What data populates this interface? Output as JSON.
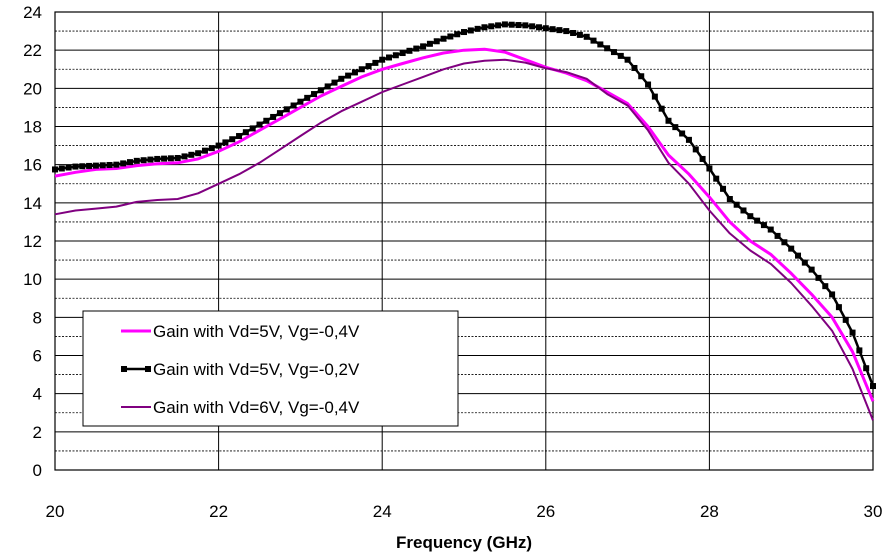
{
  "chart_data": {
    "type": "line",
    "title": "",
    "xlabel": "Frequency (GHz)",
    "ylabel": "",
    "xlim": [
      20,
      30
    ],
    "ylim": [
      0,
      24
    ],
    "x_ticks": [
      20,
      22,
      24,
      26,
      28,
      30
    ],
    "y_ticks": [
      0,
      2,
      4,
      6,
      8,
      10,
      12,
      14,
      16,
      18,
      20,
      22,
      24
    ],
    "grid": true,
    "legend_position": "lower-left",
    "series": [
      {
        "name": "Gain with Vd=5V, Vg=-0,4V",
        "color": "#ff00ff",
        "marker": "none",
        "points": [
          [
            20.0,
            15.4
          ],
          [
            20.25,
            15.6
          ],
          [
            20.5,
            15.75
          ],
          [
            20.75,
            15.8
          ],
          [
            21.0,
            15.95
          ],
          [
            21.25,
            16.05
          ],
          [
            21.5,
            16.1
          ],
          [
            21.75,
            16.3
          ],
          [
            22.0,
            16.7
          ],
          [
            22.25,
            17.2
          ],
          [
            22.5,
            17.8
          ],
          [
            22.75,
            18.4
          ],
          [
            23.0,
            19.0
          ],
          [
            23.25,
            19.6
          ],
          [
            23.5,
            20.1
          ],
          [
            23.75,
            20.6
          ],
          [
            24.0,
            21.0
          ],
          [
            24.25,
            21.3
          ],
          [
            24.5,
            21.6
          ],
          [
            24.75,
            21.85
          ],
          [
            25.0,
            22.0
          ],
          [
            25.25,
            22.05
          ],
          [
            25.5,
            21.9
          ],
          [
            25.75,
            21.5
          ],
          [
            26.0,
            21.1
          ],
          [
            26.25,
            20.8
          ],
          [
            26.5,
            20.4
          ],
          [
            26.75,
            19.8
          ],
          [
            27.0,
            19.2
          ],
          [
            27.25,
            18.0
          ],
          [
            27.5,
            16.5
          ],
          [
            27.75,
            15.5
          ],
          [
            28.0,
            14.3
          ],
          [
            28.25,
            13.0
          ],
          [
            28.5,
            12.0
          ],
          [
            28.75,
            11.3
          ],
          [
            29.0,
            10.3
          ],
          [
            29.25,
            9.2
          ],
          [
            29.5,
            8.0
          ],
          [
            29.75,
            6.2
          ],
          [
            30.0,
            3.6
          ]
        ]
      },
      {
        "name": "Gain with Vd=5V, Vg=-0,2V",
        "color": "#000000",
        "marker": "square",
        "points": [
          [
            20.0,
            15.75
          ],
          [
            20.25,
            15.9
          ],
          [
            20.5,
            15.95
          ],
          [
            20.75,
            16.0
          ],
          [
            21.0,
            16.2
          ],
          [
            21.25,
            16.3
          ],
          [
            21.5,
            16.35
          ],
          [
            21.75,
            16.6
          ],
          [
            22.0,
            17.0
          ],
          [
            22.25,
            17.5
          ],
          [
            22.5,
            18.1
          ],
          [
            22.75,
            18.7
          ],
          [
            23.0,
            19.3
          ],
          [
            23.25,
            19.9
          ],
          [
            23.5,
            20.5
          ],
          [
            23.75,
            21.0
          ],
          [
            24.0,
            21.5
          ],
          [
            24.25,
            21.85
          ],
          [
            24.5,
            22.2
          ],
          [
            24.75,
            22.6
          ],
          [
            25.0,
            22.95
          ],
          [
            25.25,
            23.2
          ],
          [
            25.5,
            23.35
          ],
          [
            25.75,
            23.3
          ],
          [
            26.0,
            23.15
          ],
          [
            26.25,
            23.0
          ],
          [
            26.5,
            22.7
          ],
          [
            26.75,
            22.1
          ],
          [
            27.0,
            21.5
          ],
          [
            27.25,
            20.2
          ],
          [
            27.5,
            18.3
          ],
          [
            27.75,
            17.3
          ],
          [
            28.0,
            15.8
          ],
          [
            28.25,
            14.2
          ],
          [
            28.5,
            13.3
          ],
          [
            28.75,
            12.6
          ],
          [
            29.0,
            11.6
          ],
          [
            29.25,
            10.5
          ],
          [
            29.5,
            9.2
          ],
          [
            29.75,
            7.2
          ],
          [
            30.0,
            4.4
          ]
        ]
      },
      {
        "name": "Gain with Vd=6V, Vg=-0,4V",
        "color": "#800080",
        "marker": "none",
        "points": [
          [
            20.0,
            13.4
          ],
          [
            20.25,
            13.6
          ],
          [
            20.5,
            13.7
          ],
          [
            20.75,
            13.8
          ],
          [
            21.0,
            14.05
          ],
          [
            21.25,
            14.15
          ],
          [
            21.5,
            14.2
          ],
          [
            21.75,
            14.5
          ],
          [
            22.0,
            15.0
          ],
          [
            22.25,
            15.5
          ],
          [
            22.5,
            16.1
          ],
          [
            22.75,
            16.8
          ],
          [
            23.0,
            17.5
          ],
          [
            23.25,
            18.2
          ],
          [
            23.5,
            18.8
          ],
          [
            23.75,
            19.3
          ],
          [
            24.0,
            19.8
          ],
          [
            24.25,
            20.2
          ],
          [
            24.5,
            20.6
          ],
          [
            24.75,
            21.0
          ],
          [
            25.0,
            21.3
          ],
          [
            25.25,
            21.45
          ],
          [
            25.5,
            21.5
          ],
          [
            25.75,
            21.35
          ],
          [
            26.0,
            21.05
          ],
          [
            26.25,
            20.85
          ],
          [
            26.5,
            20.5
          ],
          [
            26.75,
            19.7
          ],
          [
            27.0,
            19.1
          ],
          [
            27.25,
            17.8
          ],
          [
            27.5,
            16.1
          ],
          [
            27.75,
            15.0
          ],
          [
            28.0,
            13.6
          ],
          [
            28.25,
            12.4
          ],
          [
            28.5,
            11.5
          ],
          [
            28.75,
            10.8
          ],
          [
            29.0,
            9.8
          ],
          [
            29.25,
            8.6
          ],
          [
            29.5,
            7.3
          ],
          [
            29.75,
            5.3
          ],
          [
            30.0,
            2.6
          ]
        ]
      }
    ]
  }
}
